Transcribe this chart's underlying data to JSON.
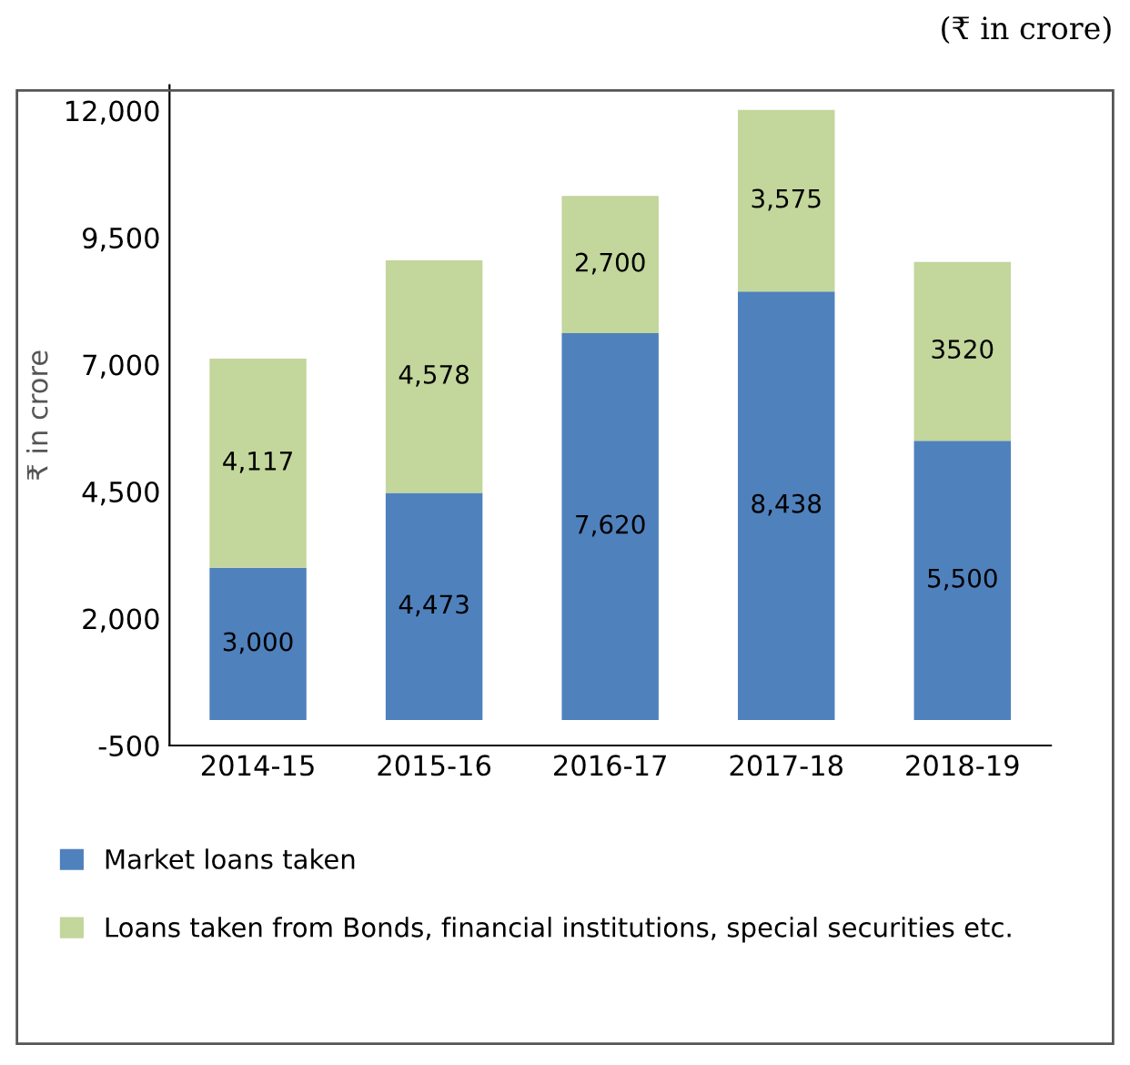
{
  "chart_data": {
    "type": "bar",
    "stacked": true,
    "ylabel": "₹ in crore",
    "annotations": [
      "(₹ in crore)"
    ],
    "categories": [
      "2014-15",
      "2015-16",
      "2016-17",
      "2017-18",
      "2018-19"
    ],
    "series": [
      {
        "name": "Market loans taken",
        "color": "#4f81bd",
        "values": [
          3000,
          4473,
          7620,
          8438,
          5500
        ],
        "value_labels": [
          "3,000",
          "4,473",
          "7,620",
          "8,438",
          "5,500"
        ]
      },
      {
        "name": "Loans taken from Bonds, financial institutions, special securities etc.",
        "color": "#c3d69b",
        "values": [
          4117,
          4578,
          2700,
          3575,
          3520
        ],
        "value_labels": [
          "4,117",
          "4,578",
          "2,700",
          "3,575",
          "3520"
        ]
      }
    ],
    "ylim": [
      -500,
      12500
    ],
    "yticks": [
      -500,
      {
        "value": 2000,
        "label": "2,000"
      },
      {
        "value": 4500,
        "label": "4,500"
      },
      {
        "value": 7000,
        "label": "7,000"
      },
      {
        "value": 9500,
        "label": "9,500"
      },
      {
        "value": 12000,
        "label": "12,000"
      }
    ],
    "grid": false,
    "legend": "bottom"
  }
}
